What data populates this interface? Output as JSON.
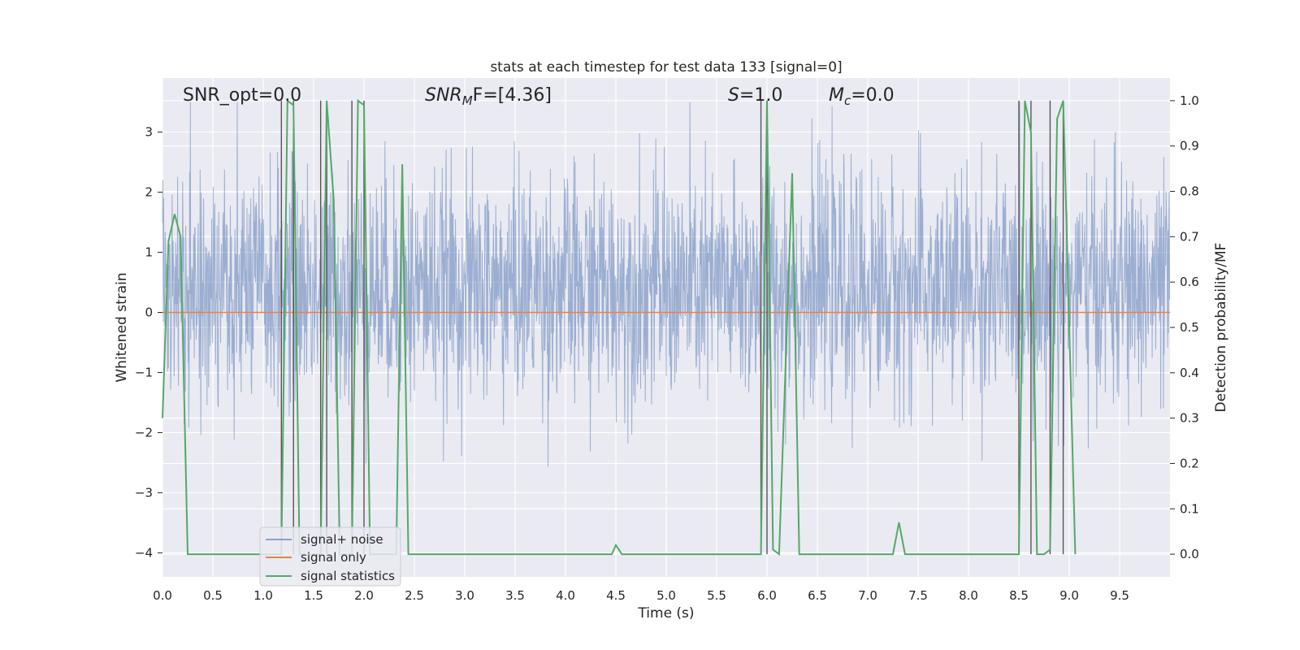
{
  "chart_data": {
    "type": "line",
    "title": "stats at each timestep for test data 133 [signal=0]",
    "xlabel": "Time (s)",
    "ylabel": "Whitened strain",
    "y2label": "Detection probability/MF",
    "xlim": [
      0.0,
      10.0
    ],
    "ylim": [
      -4.4,
      3.9
    ],
    "y2lim": [
      -0.05,
      1.05
    ],
    "xticks": [
      0.0,
      0.5,
      1.0,
      1.5,
      2.0,
      2.5,
      3.0,
      3.5,
      4.0,
      4.5,
      5.0,
      5.5,
      6.0,
      6.5,
      7.0,
      7.5,
      8.0,
      8.5,
      9.0,
      9.5
    ],
    "xtick_labels": [
      "0.0",
      "0.5",
      "1.0",
      "1.5",
      "2.0",
      "2.5",
      "3.0",
      "3.5",
      "4.0",
      "4.5",
      "5.0",
      "5.5",
      "6.0",
      "6.5",
      "7.0",
      "7.5",
      "8.0",
      "8.5",
      "9.0",
      "9.5"
    ],
    "yticks": [
      -4,
      -3,
      -2,
      -1,
      0,
      1,
      2,
      3
    ],
    "ytick_labels": [
      "−4",
      "−3",
      "−2",
      "−1",
      "0",
      "1",
      "2",
      "3"
    ],
    "y2ticks": [
      0.0,
      0.1,
      0.2,
      0.3,
      0.4,
      0.5,
      0.6,
      0.7,
      0.8,
      0.9,
      1.0
    ],
    "y2tick_labels": [
      "0.0",
      "0.1",
      "0.2",
      "0.3",
      "0.4",
      "0.5",
      "0.6",
      "0.7",
      "0.8",
      "0.9",
      "1.0"
    ],
    "grid": true,
    "legend_position": "lower-left",
    "legend": [
      "signal+ noise",
      "signal only",
      "signal statistics"
    ],
    "colors": {
      "noise": "#4c72b0",
      "signal": "#dd8452",
      "stats": "#55a868",
      "vlines": "#555555",
      "background": "#eaeaf2",
      "grid": "#ffffff"
    },
    "annotations": {
      "snr_opt": "SNR_opt=0.0",
      "snr_mf_base": "SNR",
      "snr_mf_sub": "M",
      "snr_mf_rest": "F=[4.36]",
      "s_label": "S",
      "s_rest": "=1.0",
      "mc_base": "M",
      "mc_sub": "c",
      "mc_rest": "=0.0"
    },
    "series": [
      {
        "name": "signal+ noise",
        "axis": "left",
        "representation": "dense gaussian noise, approx. range -2.6 to 3.4, spikes near 1.45, 1.6, 1.85, 5.6"
      },
      {
        "name": "signal only",
        "axis": "left",
        "x": [
          0.0,
          10.0
        ],
        "y": [
          0.0,
          0.0
        ]
      },
      {
        "name": "signal statistics",
        "axis": "right",
        "x": [
          0.0,
          0.06,
          0.12,
          0.18,
          0.25,
          1.18,
          1.24,
          1.3,
          1.36,
          1.57,
          1.63,
          1.7,
          1.76,
          1.88,
          1.94,
          2.0,
          2.06,
          2.32,
          2.38,
          2.44,
          4.4,
          4.46,
          4.5,
          4.56,
          5.94,
          6.0,
          6.06,
          6.12,
          6.25,
          6.32,
          7.25,
          7.31,
          7.37,
          8.5,
          8.56,
          8.62,
          8.68,
          8.75,
          8.81,
          8.88,
          8.94,
          9.06
        ],
        "y": [
          0.3,
          0.69,
          0.75,
          0.7,
          0.0,
          0.0,
          1.0,
          0.99,
          0.0,
          0.0,
          1.0,
          0.78,
          0.0,
          0.0,
          1.0,
          0.99,
          0.0,
          0.0,
          0.86,
          0.0,
          0.0,
          0.0,
          0.02,
          0.0,
          0.0,
          1.0,
          0.01,
          0.0,
          0.84,
          0.0,
          0.0,
          0.07,
          0.0,
          0.0,
          1.0,
          0.93,
          0.0,
          0.0,
          0.01,
          0.96,
          1.0,
          0.0
        ]
      }
    ],
    "vertical_markers": [
      1.18,
      1.3,
      1.57,
      1.63,
      1.88,
      2.0,
      5.94,
      6.0,
      8.5,
      8.62,
      8.81,
      8.94
    ]
  }
}
